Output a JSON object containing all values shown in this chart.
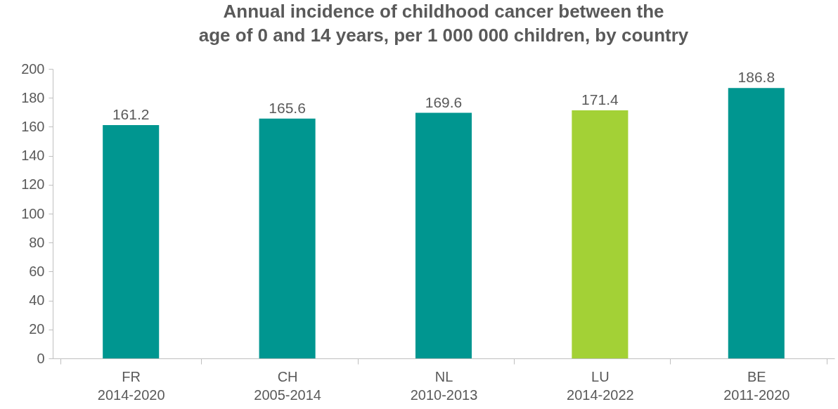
{
  "chart_data": {
    "type": "bar",
    "title": "Annual incidence of childhood cancer between the\nage of 0 and 14 years, per 1 000 000 children, by country",
    "categories": [
      "FR\n2014-2020",
      "CH\n2005-2014",
      "NL\n2010-2013",
      "LU\n2014-2022",
      "BE\n2011-2020"
    ],
    "values": [
      161.2,
      165.6,
      169.6,
      171.4,
      186.8
    ],
    "colors": [
      "#009690",
      "#009690",
      "#009690",
      "#a3d136",
      "#009690"
    ],
    "ylim": [
      0,
      200
    ],
    "yticks": [
      0,
      20,
      40,
      60,
      80,
      100,
      120,
      140,
      160,
      180,
      200
    ],
    "data_labels": true
  }
}
